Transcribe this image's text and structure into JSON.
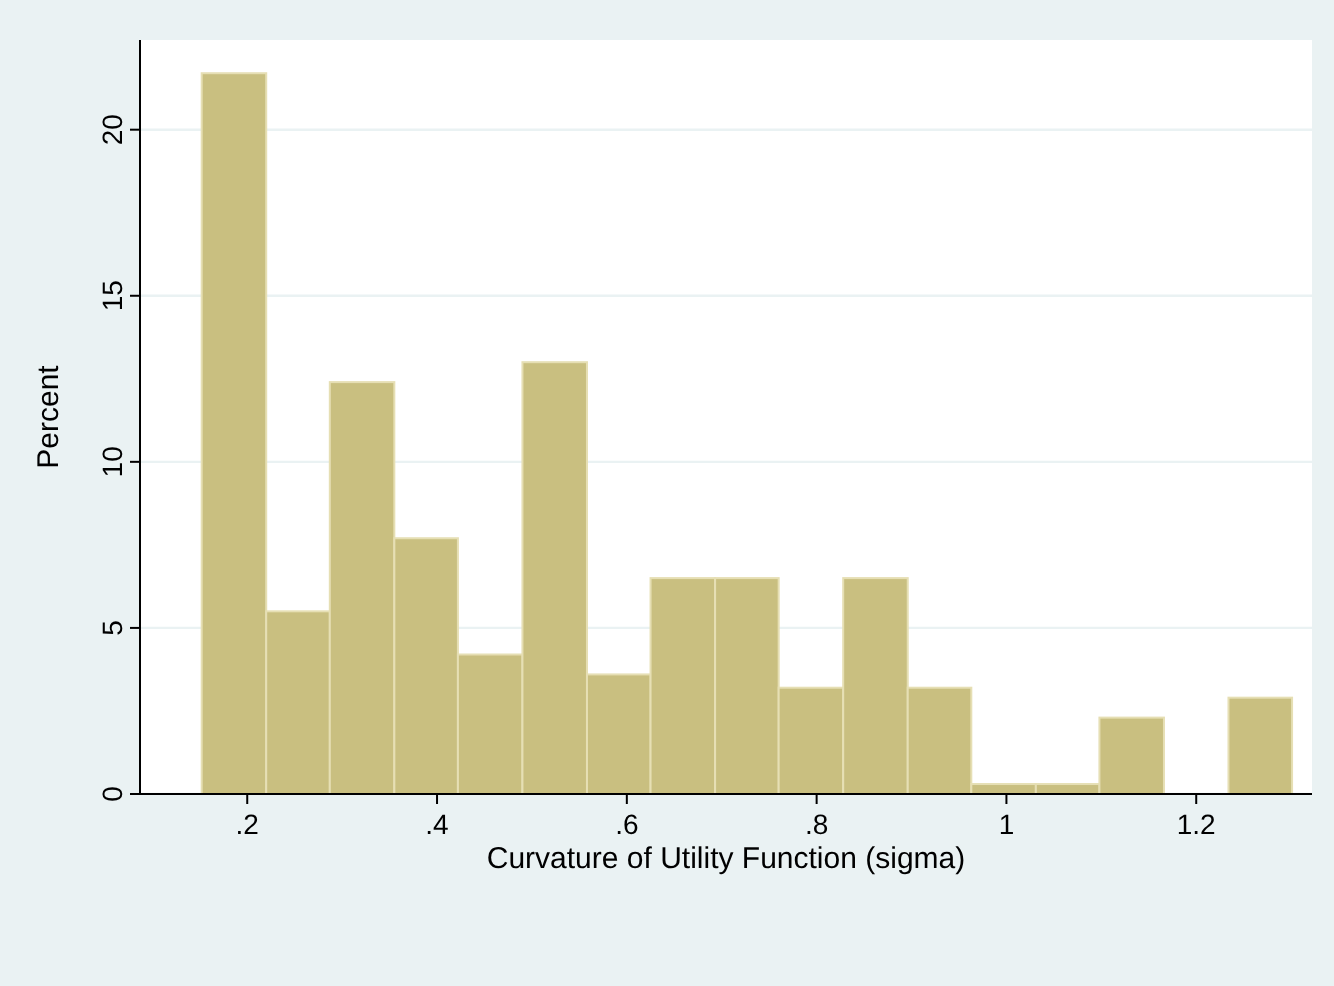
{
  "chart_data": {
    "type": "histogram",
    "xlabel": "Curvature of Utility Function (sigma)",
    "ylabel": "Percent",
    "bins": [
      0.152,
      0.22,
      0.287,
      0.355,
      0.422,
      0.49,
      0.558,
      0.625,
      0.693,
      0.76,
      0.828,
      0.896,
      0.963,
      1.031,
      1.098,
      1.166,
      1.234,
      1.301
    ],
    "values": [
      21.7,
      5.5,
      12.4,
      7.7,
      4.2,
      13.0,
      3.6,
      6.5,
      6.5,
      3.2,
      6.5,
      3.2,
      0.3,
      0.3,
      2.3,
      0,
      2.9
    ],
    "color": "#c9bf80",
    "xlim": [
      0.087,
      1.322
    ],
    "xticks": [
      {
        "value": 0.2,
        "label": ".2"
      },
      {
        "value": 0.4,
        "label": ".4"
      },
      {
        "value": 0.6,
        "label": ".6"
      },
      {
        "value": 0.8,
        "label": ".8"
      },
      1,
      1.2
    ],
    "ylim": [
      0,
      22.7
    ],
    "yticks": [
      0,
      5,
      10,
      15,
      20
    ],
    "grid": "y"
  }
}
